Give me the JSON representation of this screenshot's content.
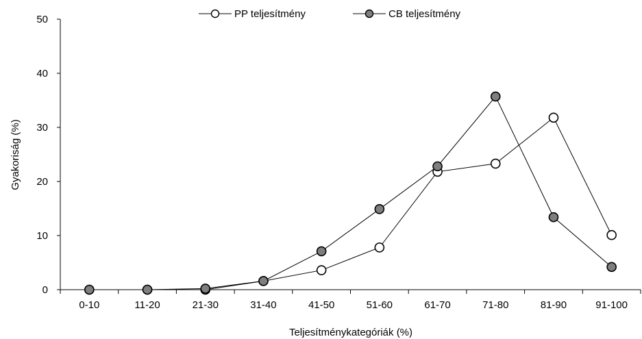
{
  "chart_data": {
    "type": "line",
    "title": "",
    "xlabel": "Teljesítménykategóriák (%)",
    "ylabel": "Gyakoriság (%)",
    "categories": [
      "0-10",
      "11-20",
      "21-30",
      "31-40",
      "41-50",
      "51-60",
      "61-70",
      "71-80",
      "81-90",
      "91-100"
    ],
    "ylim": [
      0,
      50
    ],
    "yticks": [
      "0",
      "10",
      "20",
      "30",
      "40",
      "50"
    ],
    "grid": false,
    "legend_position": "top-center",
    "series": [
      {
        "name": "PP teljesítmény",
        "marker_fill": "#ffffff",
        "values": [
          0,
          0,
          0,
          1.6,
          3.6,
          7.8,
          21.8,
          23.3,
          31.8,
          10.1
        ]
      },
      {
        "name": "CB teljesítmény",
        "marker_fill": "#7f7f7f",
        "values": [
          0,
          0,
          0.2,
          1.6,
          7.1,
          14.9,
          22.8,
          35.7,
          13.4,
          4.2
        ]
      }
    ]
  }
}
